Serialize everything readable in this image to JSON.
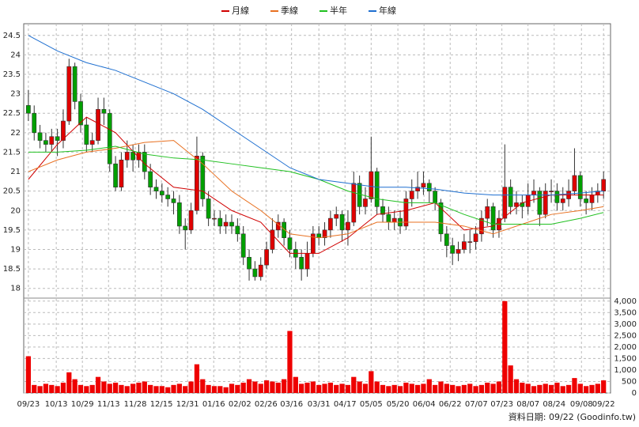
{
  "chart_data": [
    {
      "type": "candlestick",
      "legend": "top",
      "grid": true,
      "x": [
        0,
        1,
        2,
        3,
        4,
        5,
        6,
        7,
        8,
        9,
        10,
        11,
        12,
        13,
        14,
        15,
        16,
        17,
        18,
        19,
        20,
        21,
        22,
        23,
        24,
        25,
        26,
        27,
        28,
        29,
        30,
        31,
        32,
        33,
        34,
        35,
        36,
        37,
        38,
        39,
        40,
        41,
        42,
        43,
        44,
        45,
        46,
        47,
        48,
        49,
        50,
        51,
        52,
        53,
        54,
        55,
        56,
        57,
        58,
        59,
        60,
        61,
        62,
        63,
        64,
        65,
        66,
        67,
        68,
        69,
        70,
        71,
        72,
        73,
        74,
        75,
        76,
        77,
        78,
        79,
        80,
        81,
        82,
        83,
        84,
        85,
        86,
        87,
        88,
        89,
        90,
        91,
        92,
        93,
        94,
        95,
        96,
        97,
        98,
        99
      ],
      "open": [
        22.7,
        22.5,
        22.0,
        21.8,
        21.7,
        21.9,
        21.8,
        22.3,
        23.7,
        22.8,
        22.2,
        21.7,
        21.8,
        22.6,
        22.5,
        21.2,
        20.6,
        21.3,
        21.5,
        21.3,
        21.5,
        21.0,
        20.6,
        20.5,
        20.4,
        20.3,
        20.2,
        19.6,
        19.5,
        20.0,
        21.4,
        20.3,
        19.8,
        19.8,
        19.6,
        19.7,
        19.6,
        19.4,
        18.8,
        18.5,
        18.3,
        18.6,
        19.0,
        19.5,
        19.7,
        19.3,
        19.0,
        18.8,
        18.5,
        18.9,
        19.4,
        19.3,
        19.5,
        19.8,
        19.9,
        19.5,
        19.7,
        20.7,
        20.1,
        20.3,
        21.0,
        20.1,
        19.9,
        19.7,
        19.8,
        19.6,
        20.3,
        20.5,
        20.6,
        20.7,
        20.5,
        20.2,
        19.4,
        19.1,
        18.9,
        19.0,
        19.2,
        19.2,
        19.4,
        19.8,
        20.1,
        19.5,
        19.8,
        20.6,
        20.1,
        20.2,
        20.1,
        20.4,
        20.5,
        19.9,
        20.5,
        20.5,
        20.2,
        20.3,
        20.5,
        20.9,
        20.3,
        20.2,
        20.4,
        20.5
      ],
      "high": [
        23.1,
        22.7,
        22.2,
        22.0,
        22.1,
        22.1,
        22.6,
        23.9,
        23.8,
        23.0,
        22.4,
        22.0,
        22.9,
        22.9,
        22.6,
        21.4,
        21.5,
        21.8,
        21.7,
        21.7,
        21.7,
        21.2,
        20.8,
        20.7,
        20.6,
        20.5,
        20.4,
        19.8,
        20.2,
        21.9,
        21.5,
        20.5,
        20.0,
        20.0,
        19.9,
        19.9,
        19.8,
        19.6,
        19.0,
        18.7,
        18.8,
        19.2,
        19.8,
        19.9,
        19.8,
        19.5,
        19.2,
        19.0,
        19.2,
        19.6,
        19.6,
        19.7,
        20.0,
        20.1,
        20.0,
        20.0,
        21.0,
        20.9,
        20.6,
        21.9,
        21.1,
        20.3,
        20.1,
        20.0,
        20.0,
        20.5,
        20.8,
        21.0,
        21.0,
        20.8,
        20.6,
        20.3,
        19.6,
        19.3,
        19.2,
        19.4,
        19.5,
        19.6,
        20.0,
        20.3,
        20.2,
        20.0,
        21.7,
        20.8,
        20.5,
        20.4,
        20.7,
        20.8,
        20.6,
        20.7,
        20.8,
        20.7,
        20.6,
        20.8,
        21.6,
        21.0,
        20.5,
        20.6,
        20.7,
        21.0
      ],
      "low": [
        22.3,
        21.8,
        21.6,
        21.5,
        21.5,
        21.4,
        21.6,
        22.2,
        22.6,
        22.0,
        21.5,
        21.5,
        21.7,
        22.2,
        21.0,
        20.5,
        20.5,
        21.1,
        21.0,
        21.1,
        20.8,
        20.4,
        20.3,
        20.2,
        20.1,
        19.9,
        19.4,
        19.0,
        19.4,
        19.9,
        20.1,
        19.6,
        19.6,
        19.4,
        19.4,
        19.4,
        19.2,
        18.6,
        18.2,
        18.2,
        18.2,
        18.5,
        18.9,
        19.3,
        19.1,
        18.8,
        18.5,
        18.2,
        18.3,
        18.8,
        19.1,
        19.1,
        19.3,
        19.6,
        19.2,
        19.1,
        19.6,
        19.9,
        19.9,
        20.2,
        19.9,
        19.7,
        19.5,
        19.5,
        19.4,
        19.5,
        20.1,
        20.3,
        20.4,
        20.2,
        20.0,
        19.2,
        18.8,
        18.6,
        18.7,
        18.9,
        18.9,
        19.0,
        19.2,
        19.6,
        19.3,
        19.3,
        19.7,
        19.9,
        19.9,
        19.8,
        19.9,
        20.2,
        19.6,
        19.8,
        20.2,
        20.0,
        20.0,
        20.1,
        20.4,
        20.1,
        19.9,
        20.0,
        20.2,
        20.3
      ],
      "close": [
        22.5,
        22.0,
        21.8,
        21.7,
        21.9,
        21.8,
        22.3,
        23.7,
        22.8,
        22.2,
        21.7,
        21.8,
        22.6,
        22.5,
        21.2,
        20.6,
        21.3,
        21.5,
        21.3,
        21.5,
        21.0,
        20.6,
        20.5,
        20.4,
        20.3,
        20.2,
        19.6,
        19.5,
        20.0,
        21.4,
        20.3,
        19.8,
        19.8,
        19.6,
        19.7,
        19.6,
        19.4,
        18.8,
        18.5,
        18.3,
        18.6,
        19.0,
        19.5,
        19.7,
        19.3,
        19.0,
        18.8,
        18.5,
        18.9,
        19.4,
        19.3,
        19.5,
        19.8,
        19.9,
        19.5,
        19.7,
        20.7,
        20.1,
        20.3,
        21.0,
        20.1,
        19.9,
        19.7,
        19.8,
        19.6,
        20.3,
        20.5,
        20.6,
        20.7,
        20.5,
        20.2,
        19.4,
        19.1,
        18.9,
        19.0,
        19.2,
        19.2,
        19.4,
        19.8,
        20.1,
        19.5,
        19.8,
        20.6,
        20.1,
        20.2,
        20.1,
        20.4,
        20.5,
        19.9,
        20.5,
        20.5,
        20.2,
        20.3,
        20.5,
        20.9,
        20.3,
        20.2,
        20.4,
        20.5,
        20.8
      ],
      "up_color": "#e00000",
      "down_color": "#00a000",
      "series": [
        {
          "name": "月線",
          "color": "#d00000",
          "x": [
            0,
            5,
            10,
            15,
            20,
            25,
            30,
            35,
            40,
            45,
            50,
            55,
            60,
            65,
            70,
            75,
            80,
            85,
            90,
            95,
            99
          ],
          "values": [
            20.8,
            21.7,
            22.4,
            22.0,
            21.2,
            20.6,
            20.5,
            20.0,
            19.7,
            18.9,
            18.9,
            19.3,
            19.9,
            20.0,
            20.2,
            19.5,
            19.6,
            20.2,
            20.4,
            20.4,
            20.4
          ]
        },
        {
          "name": "季線",
          "color": "#e87020",
          "x": [
            0,
            5,
            10,
            15,
            20,
            25,
            30,
            35,
            40,
            45,
            50,
            55,
            60,
            65,
            70,
            75,
            80,
            85,
            90,
            95,
            99
          ],
          "values": [
            21.0,
            21.3,
            21.5,
            21.6,
            21.75,
            21.8,
            21.2,
            20.5,
            20.0,
            19.4,
            19.3,
            19.4,
            19.7,
            19.7,
            19.7,
            19.6,
            19.4,
            19.65,
            19.9,
            20.0,
            20.1
          ]
        },
        {
          "name": "半年",
          "color": "#20c020",
          "x": [
            0,
            5,
            10,
            15,
            20,
            25,
            30,
            35,
            40,
            45,
            50,
            55,
            60,
            65,
            70,
            75,
            80,
            85,
            90,
            95,
            99
          ],
          "values": [
            21.5,
            21.5,
            21.55,
            21.65,
            21.45,
            21.35,
            21.3,
            21.2,
            21.1,
            21.0,
            20.8,
            20.5,
            20.3,
            20.2,
            20.2,
            19.9,
            19.65,
            19.65,
            19.65,
            19.8,
            19.95
          ]
        },
        {
          "name": "年線",
          "color": "#1e6fd0",
          "x": [
            0,
            5,
            10,
            15,
            20,
            25,
            30,
            35,
            40,
            45,
            50,
            55,
            60,
            65,
            70,
            75,
            80,
            85,
            90,
            95,
            99
          ],
          "values": [
            24.5,
            24.1,
            23.8,
            23.6,
            23.3,
            23.0,
            22.6,
            22.1,
            21.6,
            21.1,
            20.8,
            20.7,
            20.6,
            20.6,
            20.55,
            20.45,
            20.4,
            20.4,
            20.4,
            20.45,
            20.5
          ]
        }
      ],
      "xlim": [
        -0.8,
        100.2
      ],
      "xticks": [
        {
          "value": 0,
          "label": "09/23"
        },
        {
          "value": 4.8,
          "label": "10/13"
        },
        {
          "value": 9.3,
          "label": "10/29"
        },
        {
          "value": 13.8,
          "label": "11/13"
        },
        {
          "value": 18.4,
          "label": "11/28"
        },
        {
          "value": 22.9,
          "label": "12/15"
        },
        {
          "value": 27.4,
          "label": "12/31"
        },
        {
          "value": 31.9,
          "label": "01/16"
        },
        {
          "value": 36.4,
          "label": "02/02"
        },
        {
          "value": 40.9,
          "label": "02/26"
        },
        {
          "value": 45.3,
          "label": "03/16"
        },
        {
          "value": 50,
          "label": "03/31"
        },
        {
          "value": 54.5,
          "label": "04/17"
        },
        {
          "value": 59,
          "label": "05/05"
        },
        {
          "value": 63.6,
          "label": "05/20"
        },
        {
          "value": 68.1,
          "label": "06/04"
        },
        {
          "value": 72.6,
          "label": "06/22"
        },
        {
          "value": 77.1,
          "label": "07/07"
        },
        {
          "value": 81.5,
          "label": "07/23"
        },
        {
          "value": 86,
          "label": "08/07"
        },
        {
          "value": 90.5,
          "label": "08/24"
        },
        {
          "value": 95.2,
          "label": "09/08"
        },
        {
          "value": 99,
          "label": "09/22"
        }
      ],
      "ylim": [
        17.75,
        24.8
      ],
      "yticks": [
        18,
        18.5,
        19,
        19.5,
        20,
        20.5,
        21,
        21.5,
        22,
        22.5,
        23,
        23.5,
        24,
        24.5
      ]
    },
    {
      "type": "bar",
      "grid": true,
      "color": "#ee0000",
      "values": [
        1600,
        350,
        300,
        400,
        350,
        300,
        450,
        900,
        600,
        350,
        300,
        350,
        700,
        500,
        400,
        450,
        350,
        300,
        400,
        450,
        500,
        350,
        300,
        300,
        250,
        350,
        400,
        300,
        500,
        1250,
        600,
        350,
        300,
        300,
        250,
        400,
        350,
        450,
        600,
        500,
        400,
        550,
        500,
        450,
        600,
        2700,
        700,
        400,
        450,
        500,
        350,
        400,
        450,
        350,
        400,
        350,
        700,
        500,
        400,
        950,
        500,
        350,
        300,
        350,
        300,
        450,
        400,
        350,
        400,
        600,
        350,
        500,
        400,
        350,
        300,
        350,
        400,
        300,
        350,
        450,
        400,
        500,
        4000,
        1200,
        600,
        450,
        400,
        300,
        350,
        400,
        350,
        450,
        300,
        350,
        650,
        400,
        300,
        350,
        400,
        550
      ],
      "ylim": [
        0,
        4130
      ],
      "yticks": [
        0,
        500,
        {
          "value": 1000,
          "label": "1,000"
        },
        {
          "value": 1500,
          "label": "1,500"
        },
        {
          "value": 2000,
          "label": "2,000"
        },
        {
          "value": 2500,
          "label": "2,500"
        },
        {
          "value": 3000,
          "label": "3,000"
        },
        {
          "value": 3500,
          "label": "3,500"
        },
        {
          "value": 4000,
          "label": "4,000"
        }
      ]
    }
  ],
  "footer": "資料日期: 09/22 (Goodinfo.tw)"
}
